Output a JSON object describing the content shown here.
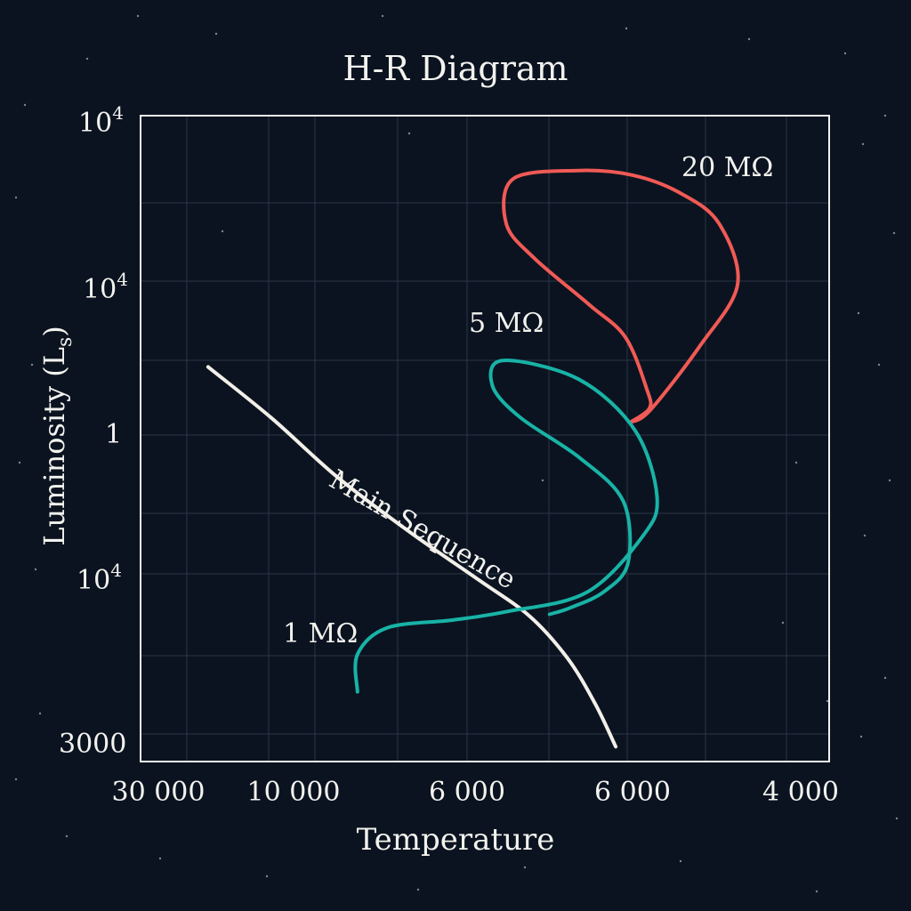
{
  "chart_data": {
    "type": "line",
    "title": "H-R Diagram",
    "xlabel": "Temperature",
    "ylabel": "Luminosity (L",
    "ylabel_sub": "s",
    "ylabel_close": ")",
    "x_ticks": [
      "30 000",
      "10 000",
      "6 000",
      "6 000",
      "4 000"
    ],
    "y_ticks": [
      {
        "base": "10",
        "exp": "4"
      },
      {
        "base": "10",
        "exp": "4"
      },
      {
        "base": "1",
        "exp": ""
      },
      {
        "base": "10",
        "exp": "4"
      },
      {
        "base": "3000",
        "exp": ""
      }
    ],
    "grid": true,
    "series": [
      {
        "name": "Main Sequence",
        "label": "Main Sequence",
        "color": "#f2efe8",
        "points": [
          [
            0.098,
            0.611
          ],
          [
            0.19,
            0.532
          ],
          [
            0.285,
            0.441
          ],
          [
            0.39,
            0.356
          ],
          [
            0.49,
            0.282
          ],
          [
            0.565,
            0.225
          ],
          [
            0.62,
            0.16
          ],
          [
            0.66,
            0.09
          ],
          [
            0.69,
            0.023
          ]
        ]
      },
      {
        "name": "20 MΩ",
        "label": "20 MΩ",
        "color": "#f05a55",
        "points": [
          [
            0.711,
            0.525
          ],
          [
            0.74,
            0.544
          ],
          [
            0.812,
            0.643
          ],
          [
            0.867,
            0.739
          ],
          [
            0.84,
            0.833
          ],
          [
            0.784,
            0.88
          ],
          [
            0.714,
            0.908
          ],
          [
            0.636,
            0.915
          ],
          [
            0.541,
            0.902
          ],
          [
            0.531,
            0.833
          ],
          [
            0.571,
            0.78
          ],
          [
            0.652,
            0.707
          ],
          [
            0.704,
            0.657
          ],
          [
            0.735,
            0.577
          ],
          [
            0.739,
            0.547
          ],
          [
            0.711,
            0.525
          ]
        ]
      },
      {
        "name": "5 MΩ",
        "label": "5 MΩ",
        "color": "#18b3a6",
        "points": [
          [
            0.315,
            0.108
          ],
          [
            0.315,
            0.166
          ],
          [
            0.358,
            0.207
          ],
          [
            0.453,
            0.219
          ],
          [
            0.531,
            0.232
          ],
          [
            0.648,
            0.262
          ],
          [
            0.73,
            0.35
          ],
          [
            0.75,
            0.41
          ],
          [
            0.718,
            0.513
          ],
          [
            0.636,
            0.592
          ],
          [
            0.526,
            0.621
          ],
          [
            0.511,
            0.582
          ],
          [
            0.551,
            0.533
          ],
          [
            0.638,
            0.47
          ],
          [
            0.701,
            0.403
          ],
          [
            0.708,
            0.308
          ],
          [
            0.673,
            0.263
          ],
          [
            0.624,
            0.238
          ],
          [
            0.594,
            0.228
          ]
        ]
      }
    ],
    "annotations": [
      {
        "text": "20 MΩ",
        "series": "20 MΩ"
      },
      {
        "text": "5 MΩ",
        "series": "5 MΩ"
      },
      {
        "text": "1 MΩ",
        "series": "5 MΩ"
      },
      {
        "text": "Main Sequence",
        "series": "Main Sequence"
      }
    ]
  },
  "colors": {
    "background": "#0b1320",
    "axis": "#f2f2ee",
    "grid": "#2b3646",
    "text": "#f2f2ee"
  }
}
